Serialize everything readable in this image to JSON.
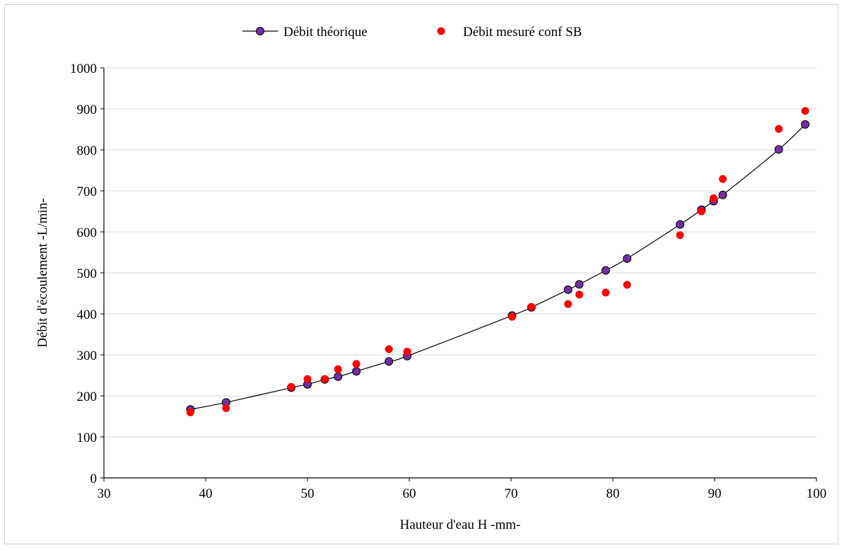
{
  "chart_data": {
    "type": "scatter",
    "title": "",
    "xlabel": "Hauteur d'eau H -mm-",
    "ylabel": "Débit d'écoulement -L/min-",
    "xlim": [
      30,
      100
    ],
    "ylim": [
      0,
      1000
    ],
    "x_ticks": [
      "30",
      "40",
      "50",
      "60",
      "70",
      "80",
      "90",
      "100"
    ],
    "y_ticks": [
      "0",
      "100",
      "200",
      "300",
      "400",
      "500",
      "600",
      "700",
      "800",
      "900",
      "1000"
    ],
    "grid": "horizontal",
    "legend_position": "top",
    "series": [
      {
        "name": "Débit théorique",
        "style": "line-with-markers",
        "color": "#000000",
        "marker_color": "#7030a0",
        "points": [
          [
            38.5,
            167
          ],
          [
            42,
            184
          ],
          [
            48.4,
            220
          ],
          [
            50,
            228
          ],
          [
            51.7,
            240
          ],
          [
            53,
            247
          ],
          [
            54.8,
            260
          ],
          [
            58,
            284
          ],
          [
            59.8,
            297
          ],
          [
            70.1,
            396
          ],
          [
            72,
            416
          ],
          [
            75.6,
            459
          ],
          [
            76.7,
            472
          ],
          [
            79.3,
            506
          ],
          [
            81.4,
            535
          ],
          [
            86.6,
            618
          ],
          [
            88.7,
            654
          ],
          [
            89.9,
            675
          ],
          [
            90.8,
            690
          ],
          [
            96.3,
            801
          ],
          [
            98.9,
            862
          ]
        ]
      },
      {
        "name": "Débit mesuré conf SB",
        "style": "markers",
        "color": "#ff0000",
        "points": [
          [
            38.5,
            160
          ],
          [
            42,
            170
          ],
          [
            48.4,
            222
          ],
          [
            50,
            241
          ],
          [
            51.7,
            241
          ],
          [
            53,
            265
          ],
          [
            54.8,
            278
          ],
          [
            58,
            314
          ],
          [
            59.8,
            308
          ],
          [
            70.1,
            393
          ],
          [
            72,
            417
          ],
          [
            75.6,
            424
          ],
          [
            76.7,
            447
          ],
          [
            79.3,
            452
          ],
          [
            81.4,
            471
          ],
          [
            86.6,
            592
          ],
          [
            88.7,
            650
          ],
          [
            89.9,
            682
          ],
          [
            90.8,
            729
          ],
          [
            96.3,
            851
          ],
          [
            98.9,
            895
          ]
        ]
      }
    ]
  }
}
